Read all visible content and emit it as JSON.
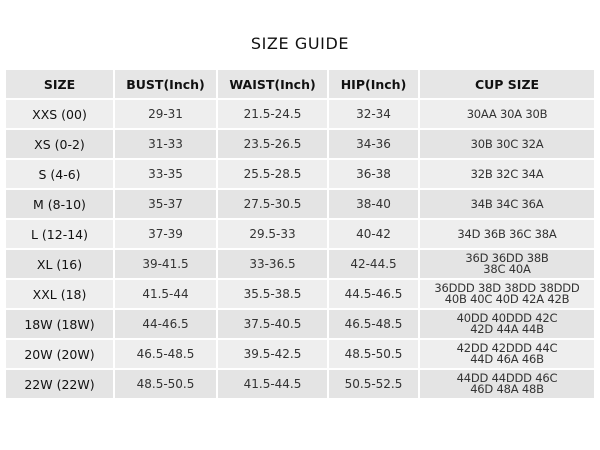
{
  "title": "SIZE GUIDE",
  "table": {
    "headers": [
      "SIZE",
      "BUST(Inch)",
      "WAIST(Inch)",
      "HIP(Inch)",
      "CUP SIZE"
    ],
    "rows": [
      {
        "size": "XXS (00)",
        "bust": "29-31",
        "waist": "21.5-24.5",
        "hip": "32-34",
        "cup": [
          "30AA 30A 30B"
        ]
      },
      {
        "size": "XS (0-2)",
        "bust": "31-33",
        "waist": "23.5-26.5",
        "hip": "34-36",
        "cup": [
          "30B 30C 32A"
        ]
      },
      {
        "size": "S (4-6)",
        "bust": "33-35",
        "waist": "25.5-28.5",
        "hip": "36-38",
        "cup": [
          "32B 32C 34A"
        ]
      },
      {
        "size": "M (8-10)",
        "bust": "35-37",
        "waist": "27.5-30.5",
        "hip": "38-40",
        "cup": [
          "34B 34C 36A"
        ]
      },
      {
        "size": "L (12-14)",
        "bust": "37-39",
        "waist": "29.5-33",
        "hip": "40-42",
        "cup": [
          "34D 36B 36C 38A"
        ]
      },
      {
        "size": "XL (16)",
        "bust": "39-41.5",
        "waist": "33-36.5",
        "hip": "42-44.5",
        "cup": [
          "36D 36DD 38B",
          "38C 40A"
        ]
      },
      {
        "size": "XXL (18)",
        "bust": "41.5-44",
        "waist": "35.5-38.5",
        "hip": "44.5-46.5",
        "cup": [
          "36DDD 38D 38DD 38DDD",
          "40B 40C 40D 42A 42B"
        ]
      },
      {
        "size": "18W (18W)",
        "bust": "44-46.5",
        "waist": "37.5-40.5",
        "hip": "46.5-48.5",
        "cup": [
          "40DD 40DDD 42C",
          "42D 44A 44B"
        ]
      },
      {
        "size": "20W (20W)",
        "bust": "46.5-48.5",
        "waist": "39.5-42.5",
        "hip": "48.5-50.5",
        "cup": [
          "42DD 42DDD 44C",
          "44D 46A 46B"
        ]
      },
      {
        "size": "22W (22W)",
        "bust": "48.5-50.5",
        "waist": "41.5-44.5",
        "hip": "50.5-52.5",
        "cup": [
          "44DD 44DDD 46C",
          "46D 48A 48B"
        ]
      }
    ]
  }
}
